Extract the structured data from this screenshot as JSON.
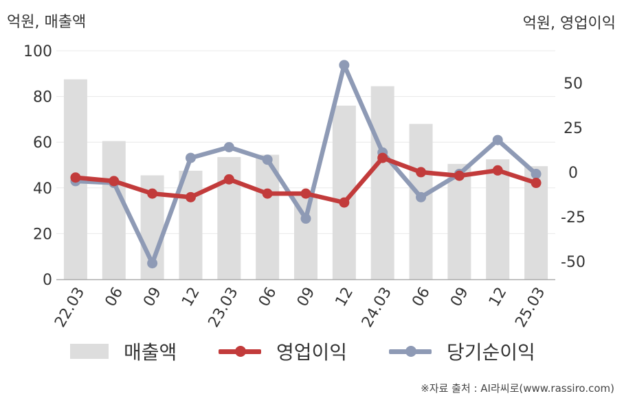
{
  "chart_data": {
    "type": "bar",
    "categories": [
      "22.03",
      "06",
      "09",
      "12",
      "23.03",
      "06",
      "09",
      "12",
      "24.03",
      "06",
      "09",
      "12",
      "25.03"
    ],
    "left_axis": {
      "unit_label": "억원, 매출액",
      "ylim": [
        0,
        100
      ],
      "ticks": [
        0,
        20,
        40,
        60,
        80,
        100
      ]
    },
    "right_axis": {
      "unit_label": "억원, 영업이익",
      "ylim": [
        -60,
        68
      ],
      "ticks": [
        -50,
        -25,
        0,
        25,
        50
      ]
    },
    "grid": true,
    "legend_position": "bottom",
    "series": [
      {
        "name": "매출액",
        "type": "bar",
        "axis": "left",
        "color": "#dddddd",
        "values": [
          87.5,
          60.5,
          45.5,
          47.5,
          53.5,
          54.5,
          37.5,
          76,
          84.5,
          68,
          50.5,
          52.5,
          49.5
        ]
      },
      {
        "name": "영업이익",
        "type": "line",
        "axis": "right",
        "color": "#c23b3b",
        "values": [
          -3,
          -5,
          -12,
          -14,
          -4,
          -12,
          -12,
          -17,
          8,
          0,
          -2,
          1,
          -6
        ]
      },
      {
        "name": "당기순이익",
        "type": "line",
        "axis": "right",
        "color": "#8e9ab5",
        "values": [
          -5,
          -6,
          -51,
          8,
          14,
          7,
          -26,
          60,
          11,
          -14,
          -1,
          18,
          -1
        ]
      }
    ]
  },
  "source_text": "※자료 출처 : AI라씨로(www.rassiro.com)"
}
